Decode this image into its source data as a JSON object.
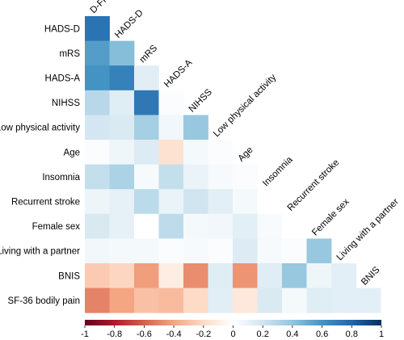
{
  "chart_data": {
    "type": "heatmap",
    "variables": [
      "D-FIS",
      "HADS-D",
      "mRS",
      "HADS-A",
      "NIHSS",
      "Low physical activity",
      "Age",
      "Insomnia",
      "Recurrent stroke",
      "Female sex",
      "Living with a partner",
      "BNIS",
      "SF-36 bodily pain"
    ],
    "row_labels": [
      "HADS-D",
      "mRS",
      "HADS-A",
      "NIHSS",
      "Low physical activity",
      "Age",
      "Insomnia",
      "Recurrent stroke",
      "Female sex",
      "Living with a partner",
      "BNIS",
      "SF-36 bodily pain"
    ],
    "column_labels": [
      "D-FIS",
      "HADS-D",
      "mRS",
      "HADS-A",
      "NIHSS",
      "Low physical activity",
      "Age",
      "Insomnia",
      "Recurrent stroke",
      "Female sex",
      "Living with a partner",
      "BNIS"
    ],
    "values": [
      [
        0.74
      ],
      [
        0.56,
        0.43
      ],
      [
        0.6,
        0.68,
        0.13
      ],
      [
        0.28,
        0.14,
        0.72,
        0.02
      ],
      [
        0.19,
        0.16,
        0.34,
        0.06,
        0.38
      ],
      [
        0.02,
        0.07,
        0.15,
        -0.16,
        0.05,
        0.02
      ],
      [
        0.24,
        0.32,
        0.04,
        0.24,
        0.09,
        0.04,
        0.02
      ],
      [
        0.08,
        0.11,
        0.27,
        0.09,
        0.2,
        0.12,
        0.05,
        0.0
      ],
      [
        0.17,
        0.11,
        0.0,
        0.26,
        0.05,
        0.06,
        0.12,
        0.03,
        0.0
      ],
      [
        0.06,
        0.05,
        0.05,
        0.02,
        0.04,
        0.02,
        0.15,
        0.04,
        0.02,
        0.38
      ],
      [
        -0.26,
        -0.22,
        -0.42,
        -0.1,
        -0.47,
        0.14,
        -0.45,
        0.14,
        0.38,
        0.07,
        0.12
      ],
      [
        -0.5,
        -0.4,
        -0.3,
        -0.32,
        -0.2,
        0.13,
        -0.13,
        0.16,
        0.05,
        0.14,
        0.12,
        0.12
      ]
    ],
    "colorbar": {
      "range": [
        -1,
        1
      ],
      "tick_labels": [
        "-1",
        "-0.8",
        "-0.6",
        "-0.4",
        "-0.2",
        "0",
        "0.2",
        "0.4",
        "0.6",
        "0.8",
        "1"
      ],
      "colors": [
        "#67001f",
        "#b2182b",
        "#d6604d",
        "#f4a582",
        "#fddbc7",
        "#ffffff",
        "#d1e5f0",
        "#92c5de",
        "#4393c3",
        "#2166ac",
        "#053061"
      ]
    }
  }
}
